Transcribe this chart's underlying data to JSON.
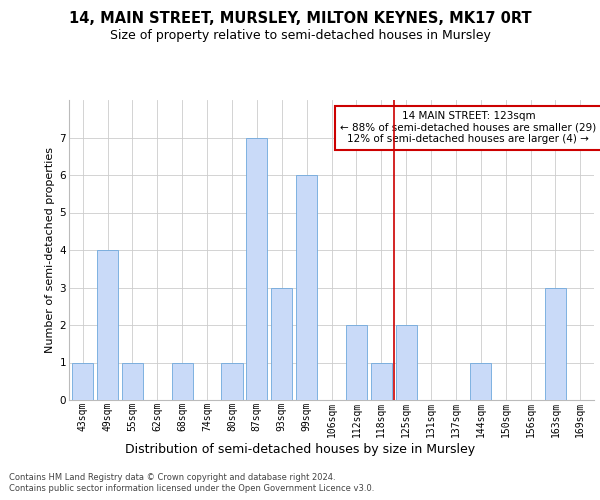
{
  "title": "14, MAIN STREET, MURSLEY, MILTON KEYNES, MK17 0RT",
  "subtitle": "Size of property relative to semi-detached houses in Mursley",
  "xlabel": "Distribution of semi-detached houses by size in Mursley",
  "ylabel": "Number of semi-detached properties",
  "categories": [
    "43sqm",
    "49sqm",
    "55sqm",
    "62sqm",
    "68sqm",
    "74sqm",
    "80sqm",
    "87sqm",
    "93sqm",
    "99sqm",
    "106sqm",
    "112sqm",
    "118sqm",
    "125sqm",
    "131sqm",
    "137sqm",
    "144sqm",
    "150sqm",
    "156sqm",
    "163sqm",
    "169sqm"
  ],
  "values": [
    1,
    4,
    1,
    0,
    1,
    0,
    1,
    7,
    3,
    6,
    0,
    2,
    1,
    2,
    0,
    0,
    1,
    0,
    0,
    3,
    0
  ],
  "bar_color": "#c9daf8",
  "bar_edge_color": "#6fa8dc",
  "vline_x": 12.5,
  "vline_color": "#cc0000",
  "annotation_text": "14 MAIN STREET: 123sqm\n← 88% of semi-detached houses are smaller (29)\n12% of semi-detached houses are larger (4) →",
  "annotation_box_facecolor": "#ffffff",
  "annotation_box_edgecolor": "#cc0000",
  "footer_line1": "Contains HM Land Registry data © Crown copyright and database right 2024.",
  "footer_line2": "Contains public sector information licensed under the Open Government Licence v3.0.",
  "ylim": [
    0,
    8
  ],
  "yticks": [
    0,
    1,
    2,
    3,
    4,
    5,
    6,
    7
  ],
  "bg_color": "#ffffff",
  "grid_color": "#cccccc",
  "title_fontsize": 10.5,
  "subtitle_fontsize": 9,
  "xlabel_fontsize": 9,
  "ylabel_fontsize": 8,
  "tick_fontsize": 7,
  "annotation_fontsize": 7.5,
  "footer_fontsize": 6
}
